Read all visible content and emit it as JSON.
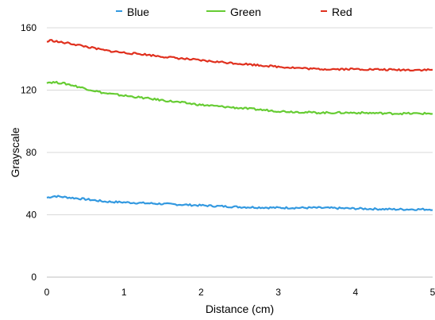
{
  "chart_data": {
    "type": "line",
    "xlabel": "Distance (cm)",
    "ylabel": "Grayscale",
    "xlim": [
      0,
      5
    ],
    "ylim": [
      0,
      160
    ],
    "xticks": [
      0,
      1,
      2,
      3,
      4,
      5
    ],
    "yticks": [
      0,
      40,
      80,
      120,
      160
    ],
    "grid": "horizontal",
    "legend_position": "top",
    "series": [
      {
        "name": "Blue",
        "color": "#3399e0",
        "x": [
          0,
          0.1,
          0.2,
          0.3,
          0.5,
          0.75,
          1.0,
          1.25,
          1.5,
          2.0,
          2.5,
          3.0,
          3.5,
          4.0,
          4.5,
          5.0
        ],
        "y": [
          51,
          52,
          51.5,
          51,
          50,
          48.5,
          48,
          47.5,
          47,
          46,
          45,
          44.5,
          44.5,
          44,
          43.5,
          43.5
        ]
      },
      {
        "name": "Green",
        "color": "#66cc33",
        "x": [
          0,
          0.1,
          0.2,
          0.3,
          0.5,
          0.75,
          1.0,
          1.25,
          1.5,
          2.0,
          2.5,
          3.0,
          3.5,
          4.0,
          4.5,
          5.0
        ],
        "y": [
          125,
          125,
          124.5,
          123.5,
          121,
          118,
          116.5,
          115,
          113.5,
          110.5,
          108.5,
          106.5,
          105.5,
          105.5,
          105,
          105
        ]
      },
      {
        "name": "Red",
        "color": "#e0301e",
        "x": [
          0,
          0.05,
          0.1,
          0.2,
          0.3,
          0.5,
          0.75,
          1.0,
          1.25,
          1.5,
          2.0,
          2.5,
          3.0,
          3.5,
          4.0,
          4.5,
          5.0
        ],
        "y": [
          151,
          152,
          151.5,
          150.5,
          150,
          148,
          145.5,
          144,
          143,
          141.5,
          139,
          137,
          135,
          133.5,
          133.5,
          133,
          133
        ]
      }
    ]
  }
}
